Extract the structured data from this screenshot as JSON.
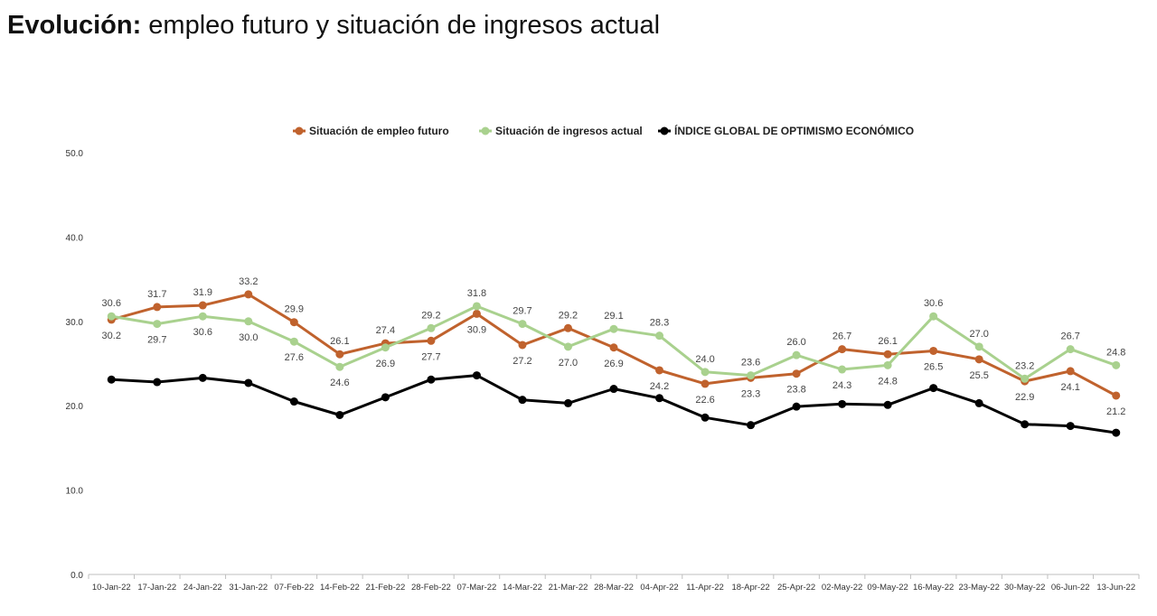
{
  "page": {
    "title_bold": "Evolución:",
    "title_rest": " empleo futuro y situación de ingresos actual"
  },
  "chart_data": {
    "type": "line",
    "title": "",
    "xlabel": "",
    "ylabel": "",
    "ylim": [
      0,
      50
    ],
    "y_ticks": [
      "0.0",
      "10.0",
      "20.0",
      "30.0",
      "40.0",
      "50.0"
    ],
    "grid": false,
    "legend_position": "top",
    "categories": [
      "10-Jan-22",
      "17-Jan-22",
      "24-Jan-22",
      "31-Jan-22",
      "07-Feb-22",
      "14-Feb-22",
      "21-Feb-22",
      "28-Feb-22",
      "07-Mar-22",
      "14-Mar-22",
      "21-Mar-22",
      "28-Mar-22",
      "04-Apr-22",
      "11-Apr-22",
      "18-Apr-22",
      "25-Apr-22",
      "02-May-22",
      "09-May-22",
      "16-May-22",
      "23-May-22",
      "30-May-22",
      "06-Jun-22",
      "13-Jun-22"
    ],
    "series": [
      {
        "name": "Situación de empleo futuro",
        "color": "#c0622d",
        "values": [
          30.2,
          31.7,
          31.9,
          33.2,
          29.9,
          26.1,
          27.4,
          27.7,
          30.9,
          27.2,
          29.2,
          26.9,
          24.2,
          22.6,
          23.3,
          23.8,
          26.7,
          26.1,
          26.5,
          25.5,
          22.9,
          24.1,
          21.2
        ],
        "labels": [
          "30.2",
          "31.7",
          "31.9",
          "33.2",
          "29.9",
          "26.1",
          "27.4",
          "27.7",
          "30.9",
          "27.2",
          "29.2",
          "26.9",
          "24.2",
          "22.6",
          "23.3",
          "23.8",
          "26.7",
          "26.1",
          "26.5",
          "25.5",
          "22.9",
          "24.1",
          "21.2"
        ]
      },
      {
        "name": "Situación de ingresos actual",
        "color": "#a9d18e",
        "values": [
          30.6,
          29.7,
          30.6,
          30.0,
          27.6,
          24.6,
          26.9,
          29.2,
          31.8,
          29.7,
          27.0,
          29.1,
          28.3,
          24.0,
          23.6,
          26.0,
          24.3,
          24.8,
          30.6,
          27.0,
          23.2,
          26.7,
          24.8
        ],
        "labels": [
          "30.6",
          "29.7",
          "30.6",
          "30.0",
          "27.6",
          "24.6",
          "26.9",
          "29.2",
          "31.8",
          "29.7",
          "27.0",
          "29.1",
          "28.3",
          "24.0",
          "23.6",
          "26.0",
          "24.3",
          "24.8",
          "30.6",
          "27.0",
          "23.2",
          "26.7",
          "24.8"
        ]
      },
      {
        "name": "ÍNDICE GLOBAL DE OPTIMISMO ECONÓMICO",
        "color": "#000000",
        "values": [
          23.1,
          22.8,
          23.3,
          22.7,
          20.5,
          18.9,
          21.0,
          23.1,
          23.6,
          20.7,
          20.3,
          22.0,
          20.9,
          18.6,
          17.7,
          19.9,
          20.2,
          20.1,
          22.1,
          20.3,
          17.8,
          17.6,
          16.8
        ]
      }
    ]
  }
}
